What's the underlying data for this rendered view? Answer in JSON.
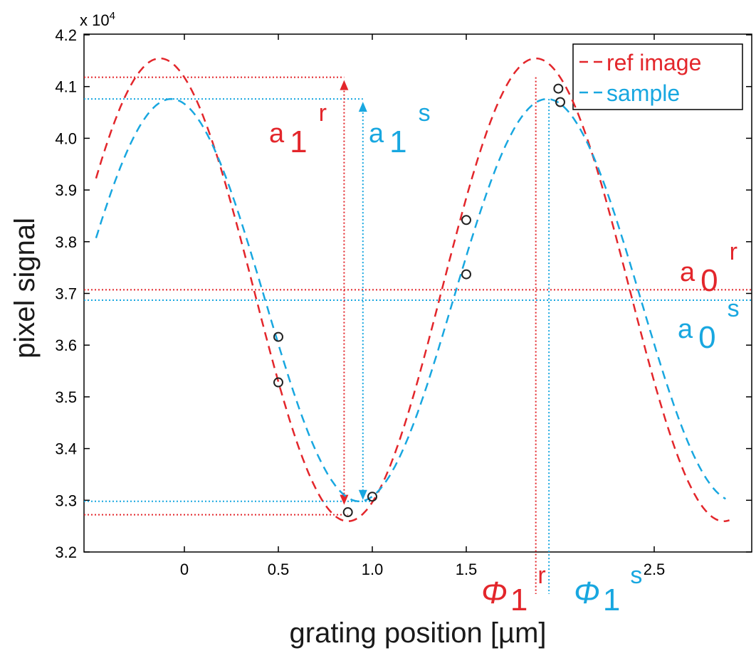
{
  "chart_data": {
    "type": "line",
    "xlabel": "grating position [µm]",
    "ylabel": "pixel signal",
    "y_multiplier": "x 10",
    "y_multiplier_exp": "4",
    "xlim": [
      -0.5,
      3.0
    ],
    "ylim": [
      3.2,
      4.2
    ],
    "x_ticks": [
      0,
      0.5,
      1.0,
      1.5,
      2.5
    ],
    "x_tick_labels": [
      "0",
      "0.5",
      "1.0",
      "1.5",
      "2.5"
    ],
    "y_ticks": [
      3.2,
      3.3,
      3.4,
      3.5,
      3.6,
      3.7,
      3.8,
      3.9,
      4.0,
      4.1,
      4.2
    ],
    "y_tick_labels": [
      "3.2",
      "3.3",
      "3.4",
      "3.5",
      "3.6",
      "3.7",
      "3.8",
      "3.9",
      "4.0",
      "4.1",
      "4.2"
    ],
    "grid": false,
    "legend_position": "top-right",
    "series": [
      {
        "name": "ref image",
        "color": "#e3262b",
        "style": "dashed",
        "mean": 3.707,
        "amplitude": 0.4475,
        "period": 2.0,
        "x_max": -0.13,
        "x_min": 0.87,
        "samples": [
          {
            "x": 0.5,
            "y": 3.528
          },
          {
            "x": 0.87,
            "y": 3.277
          },
          {
            "x": 1.5,
            "y": 3.842
          },
          {
            "x": 1.99,
            "y": 4.096
          }
        ]
      },
      {
        "name": "sample",
        "color": "#18a7e0",
        "style": "dashed",
        "mean": 3.687,
        "amplitude": 0.389,
        "period": 2.0,
        "x_max": -0.07,
        "x_min": 0.93,
        "samples": [
          {
            "x": 0.5,
            "y": 3.616
          },
          {
            "x": 1.0,
            "y": 3.307
          },
          {
            "x": 1.5,
            "y": 3.737
          },
          {
            "x": 2.0,
            "y": 4.07
          }
        ]
      }
    ],
    "reference_lines": {
      "ref_max": 4.118,
      "ref_min": 3.272,
      "ref_mean": 3.707,
      "sample_max": 4.076,
      "sample_min": 3.298,
      "sample_mean": 3.687,
      "ref_phase_x": 1.87,
      "sample_phase_x": 1.94,
      "ref_amp_arrow_x": 0.85,
      "sample_amp_arrow_x": 0.95
    },
    "annotations": {
      "a1r": {
        "base": "a",
        "sub": "1",
        "sup": "r"
      },
      "a1s": {
        "base": "a",
        "sub": "1",
        "sup": "s"
      },
      "a0r": {
        "base": "a",
        "sub": "0",
        "sup": "r"
      },
      "a0s": {
        "base": "a",
        "sub": "0",
        "sup": "s"
      },
      "phi1r": {
        "base": "Φ",
        "sub": "1",
        "sup": "r"
      },
      "phi1s": {
        "base": "Φ",
        "sub": "1",
        "sup": "s"
      }
    },
    "colors": {
      "ref": "#e3262b",
      "sample": "#18a7e0",
      "marker": "#222222"
    }
  }
}
